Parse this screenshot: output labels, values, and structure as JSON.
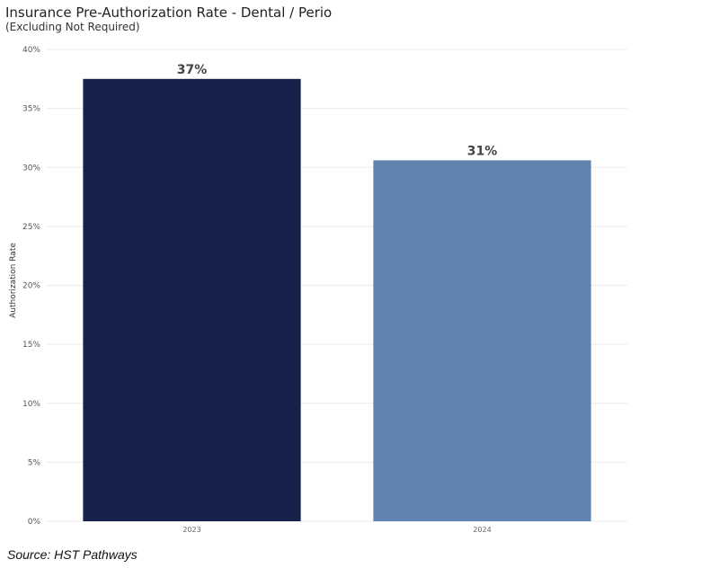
{
  "chart_data": {
    "type": "bar",
    "title": "Insurance Pre-Authorization Rate - Dental / Perio",
    "subtitle": "(Excluding Not Required)",
    "xlabel": "",
    "ylabel": "Authorization Rate",
    "categories": [
      "2023",
      "2024"
    ],
    "values": [
      37.5,
      30.6
    ],
    "data_labels": [
      "37%",
      "31%"
    ],
    "colors": [
      "#16224b",
      "#6083b0"
    ],
    "ylim": [
      0,
      40
    ],
    "yticks": [
      0,
      5,
      10,
      15,
      20,
      25,
      30,
      35,
      40
    ],
    "ytick_labels": [
      "0%",
      "5%",
      "10%",
      "15%",
      "20%",
      "25%",
      "30%",
      "35%",
      "40%"
    ],
    "grid": true,
    "legend": "none"
  },
  "footer": {
    "source": "Source: HST Pathways"
  }
}
